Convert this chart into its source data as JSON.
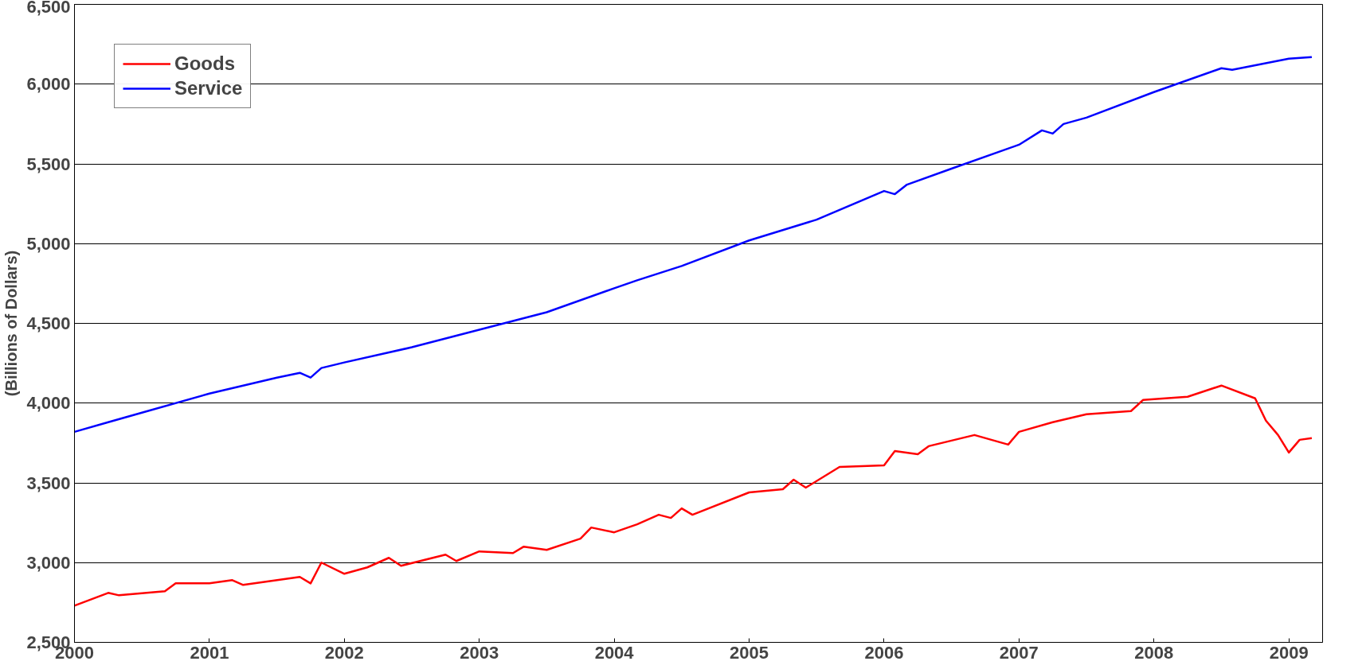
{
  "chart_data": {
    "type": "line",
    "ylabel": "(Billions of Dollars)",
    "xlim": [
      2000,
      2009.25
    ],
    "xticks": [
      2000,
      2001,
      2002,
      2003,
      2004,
      2005,
      2006,
      2007,
      2008,
      2009
    ],
    "ylim": [
      2500,
      6500
    ],
    "yticks": [
      {
        "value": 2500,
        "label": "2,500"
      },
      {
        "value": 3000,
        "label": "3,000"
      },
      {
        "value": 3500,
        "label": "3,500"
      },
      {
        "value": 4000,
        "label": "4,000"
      },
      {
        "value": 4500,
        "label": "4,500"
      },
      {
        "value": 5000,
        "label": "5,000"
      },
      {
        "value": 5500,
        "label": "5,500"
      },
      {
        "value": 6000,
        "label": "6,000"
      },
      {
        "value": 6500,
        "label": "6,500"
      }
    ],
    "grid": "y",
    "legend": "top left",
    "line_style": "solid",
    "series": [
      {
        "name": "Goods",
        "color": "#ff0000",
        "x": [
          2000.0,
          2000.25,
          2000.33,
          2000.67,
          2000.75,
          2001.0,
          2001.17,
          2001.25,
          2001.67,
          2001.75,
          2001.83,
          2002.0,
          2002.17,
          2002.33,
          2002.42,
          2002.75,
          2002.83,
          2003.0,
          2003.25,
          2003.33,
          2003.5,
          2003.75,
          2003.83,
          2004.0,
          2004.17,
          2004.33,
          2004.42,
          2004.5,
          2004.58,
          2005.0,
          2005.25,
          2005.33,
          2005.42,
          2005.67,
          2006.0,
          2006.08,
          2006.25,
          2006.33,
          2006.67,
          2006.92,
          2007.0,
          2007.25,
          2007.5,
          2007.83,
          2007.92,
          2008.25,
          2008.5,
          2008.75,
          2008.83,
          2008.92,
          2009.0,
          2009.08,
          2009.17
        ],
        "values": [
          2730,
          2810,
          2795,
          2820,
          2870,
          2870,
          2890,
          2860,
          2910,
          2870,
          3000,
          2930,
          2970,
          3030,
          2980,
          3050,
          3010,
          3070,
          3060,
          3100,
          3080,
          3150,
          3220,
          3190,
          3240,
          3300,
          3280,
          3340,
          3300,
          3440,
          3460,
          3520,
          3470,
          3600,
          3610,
          3700,
          3680,
          3730,
          3800,
          3740,
          3820,
          3880,
          3930,
          3950,
          4020,
          4040,
          4110,
          4030,
          3890,
          3800,
          3690,
          3770,
          3780
        ]
      },
      {
        "name": "Service",
        "color": "#0000ff",
        "x": [
          2000.0,
          2000.25,
          2000.5,
          2001.0,
          2001.5,
          2001.67,
          2001.75,
          2001.83,
          2002.0,
          2002.5,
          2003.0,
          2003.5,
          2004.0,
          2004.17,
          2004.5,
          2005.0,
          2005.5,
          2006.0,
          2006.08,
          2006.17,
          2006.5,
          2007.0,
          2007.17,
          2007.25,
          2007.33,
          2007.5,
          2008.0,
          2008.5,
          2008.58,
          2009.0,
          2009.17
        ],
        "values": [
          3820,
          3880,
          3940,
          4060,
          4160,
          4190,
          4160,
          4220,
          4255,
          4350,
          4460,
          4570,
          4720,
          4770,
          4860,
          5020,
          5150,
          5330,
          5310,
          5370,
          5470,
          5620,
          5710,
          5690,
          5750,
          5790,
          5950,
          6100,
          6090,
          6160,
          6170
        ]
      }
    ]
  }
}
